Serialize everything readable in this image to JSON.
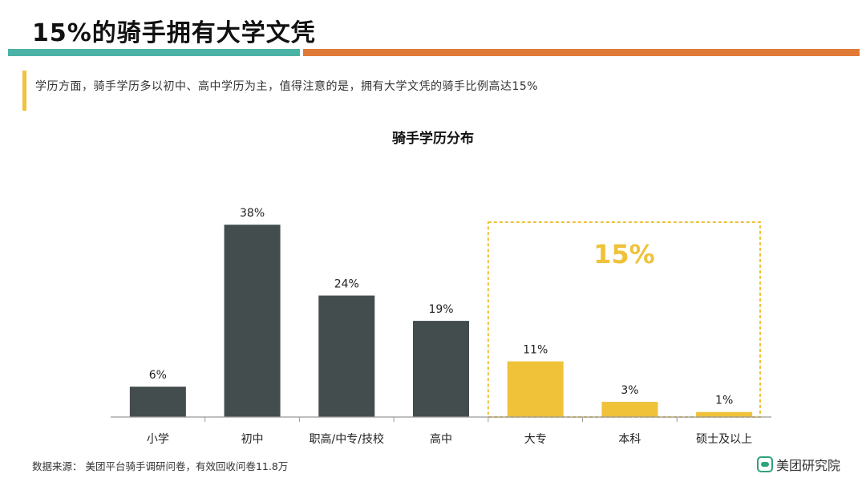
{
  "header": {
    "title": "15%的骑手拥有大学文凭",
    "note": "学历方面，骑手学历多以初中、高中学历为主，值得注意的是，拥有大学文凭的骑手比例高达15%"
  },
  "chart_data": {
    "type": "bar",
    "title": "骑手学历分布",
    "categories": [
      "小学",
      "初中",
      "职高/中专/技校",
      "高中",
      "大专",
      "本科",
      "硕士及以上"
    ],
    "values": [
      6,
      38,
      24,
      19,
      11,
      3,
      1
    ],
    "value_labels": [
      "6%",
      "38%",
      "24%",
      "19%",
      "11%",
      "3%",
      "1%"
    ],
    "unit": "%",
    "ylim": [
      0,
      45
    ],
    "colors": [
      "#434d4d",
      "#434d4d",
      "#434d4d",
      "#434d4d",
      "#efc23a",
      "#efc23a",
      "#efc23a"
    ],
    "highlight": {
      "label": "15%",
      "categories": [
        "大专",
        "本科",
        "硕士及以上"
      ],
      "color": "#efc23a"
    },
    "grid": false,
    "legend": "none"
  },
  "footer": {
    "source": "数据来源： 美团平台骑手调研问卷，有效回收问卷11.8万",
    "logo_text": "美团研究院"
  }
}
